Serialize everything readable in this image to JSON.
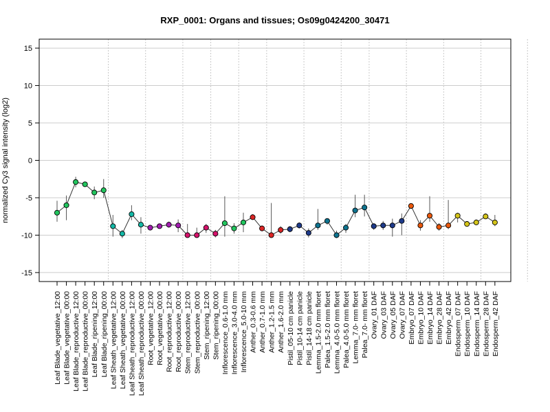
{
  "chart_data": {
    "type": "line",
    "title": "RXP_0001: Organs and tissues; Os09g0424200_30471",
    "ylabel": "normalized Cy3 signal intensity (log2)",
    "xlabel": "",
    "ylim": [
      -16.2,
      16.2
    ],
    "yticks": [
      -15,
      -10,
      -5,
      0,
      5,
      10,
      15
    ],
    "grid": "horizontal solid at y ticks; vertical dotted between tissue groups",
    "group_boundaries_after_index": [
      5,
      9,
      13,
      16,
      19,
      22,
      26,
      30,
      33,
      37,
      41,
      45,
      50,
      54
    ],
    "categories": [
      "Leaf Blade_vegetative_12:00",
      "Leaf Blade_vegetative_00:00",
      "Leaf Blade_reproductive_12:00",
      "Leaf Blade_reproductive_00:00",
      "Leaf Blade_ripening_12:00",
      "Leaf Blade_ripening_00:00",
      "Leaf Sheath_vegetative_12:00",
      "Leaf Sheath_vegetative_00:00",
      "Leaf Sheath_reproductive_12:00",
      "Leaf Sheath_reproductive_00:00",
      "Root_vegetative_12:00",
      "Root_vegetative_00:00",
      "Root_reproductive_12:00",
      "Root_reproductive_00:00",
      "Stem_reproductive_12:00",
      "Stem_reproductive_00:00",
      "Stem_ripening_12:00",
      "Stem_ripening_00:00",
      "Inflorescence_0.6-1.0 mm",
      "Inflorescence_3.0-4.0 mm",
      "Inflorescence_5.0-10 mm",
      "Anther_0.3-0.6 mm",
      "Anther_0.7-1.0 mm",
      "Anther_1.2-1.5 mm",
      "Anther_1.6-2.0 mm",
      "Pistil_05-10 cm panicle",
      "Pistil_10-14 cm panicle",
      "Pistil_14-18 cm panicle",
      "Lemma_1.5-2.0 mm floret",
      "Palea_1.5-2.0 mm floret",
      "Lemma_4.0-5.0 mm floret",
      "Palea_4.0-5.0 mm floret",
      "Lemma_7.0- mm floret",
      "Palea_7.0- mm floret",
      "Ovary_01 DAF",
      "Ovary_03 DAF",
      "Ovary_05 DAF",
      "Ovary_07 DAF",
      "Embryo_07 DAF",
      "Embryo_10 DAF",
      "Embryo_14 DAF",
      "Embryo_28 DAF",
      "Embryo_42 DAF",
      "Endosperm_07 DAF",
      "Endosperm_10 DAF",
      "Endosperm_14 DAF",
      "Endosperm_28 DAF",
      "Endosperm_42 DAF"
    ],
    "values": [
      -7.0,
      -6.0,
      -2.9,
      -3.2,
      -4.3,
      -4.0,
      -8.8,
      -9.8,
      -7.2,
      -8.6,
      -9.0,
      -8.8,
      -8.6,
      -8.7,
      -10.0,
      -10.0,
      -9.0,
      -9.8,
      -8.4,
      -9.1,
      -8.3,
      -7.6,
      -9.1,
      -10.0,
      -9.3,
      -9.2,
      -8.7,
      -9.7,
      -8.7,
      -8.1,
      -10.0,
      -9.0,
      -6.7,
      -6.3,
      -8.8,
      -8.7,
      -8.7,
      -8.1,
      -6.1,
      -8.7,
      -7.4,
      -8.9,
      -8.7,
      -7.4,
      -8.5,
      -8.3,
      -7.5,
      -8.3
    ],
    "err_low": [
      -8.2,
      -8.0,
      -3.6,
      -3.5,
      -5.2,
      -5.0,
      -10.2,
      -10.4,
      -8.0,
      -9.8,
      -9.3,
      -9.1,
      -9.0,
      -9.6,
      -10.3,
      -10.3,
      -9.7,
      -10.3,
      -10.2,
      -9.8,
      -9.6,
      -7.9,
      -9.4,
      -10.3,
      -9.8,
      -9.6,
      -9.1,
      -10.3,
      -9.3,
      -8.6,
      -10.4,
      -9.7,
      -7.6,
      -7.5,
      -9.3,
      -9.3,
      -10.2,
      -10.0,
      -6.4,
      -9.4,
      -8.2,
      -9.4,
      -9.2,
      -8.3,
      -8.7,
      -8.5,
      -7.8,
      -8.8
    ],
    "err_high": [
      -5.4,
      -4.7,
      -2.2,
      -2.9,
      -3.5,
      -2.5,
      -7.3,
      -9.3,
      -6.0,
      -7.6,
      -8.7,
      -8.5,
      -8.2,
      -7.9,
      -8.5,
      -9.0,
      -8.5,
      -9.3,
      -4.8,
      -8.4,
      -7.0,
      -7.2,
      -8.7,
      -5.7,
      -8.8,
      -8.8,
      -8.3,
      -9.1,
      -6.5,
      -7.8,
      -9.4,
      -8.5,
      -4.6,
      -4.6,
      -8.4,
      -8.1,
      -7.8,
      -7.1,
      -5.8,
      -8.0,
      -4.8,
      -8.4,
      -5.3,
      -7.0,
      -8.3,
      -7.9,
      -7.1,
      -7.3
    ],
    "colors": [
      "#22c55e",
      "#22c55e",
      "#22c55e",
      "#22c55e",
      "#22c55e",
      "#22c55e",
      "#14b8a6",
      "#14b8a6",
      "#14b8a6",
      "#14b8a6",
      "#a21caf",
      "#a21caf",
      "#a21caf",
      "#a21caf",
      "#d6126b",
      "#d6126b",
      "#d6126b",
      "#d6126b",
      "#22c55e",
      "#22c55e",
      "#22c55e",
      "#dc2626",
      "#dc2626",
      "#dc2626",
      "#dc2626",
      "#1e3a8a",
      "#1e3a8a",
      "#1e3a8a",
      "#0e7490",
      "#0e7490",
      "#0e7490",
      "#0e7490",
      "#0e7490",
      "#0e7490",
      "#1e3a8a",
      "#1e3a8a",
      "#1e3a8a",
      "#1e3a8a",
      "#ea580c",
      "#ea580c",
      "#ea580c",
      "#ea580c",
      "#ea580c",
      "#d4c41a",
      "#d4c41a",
      "#d4c41a",
      "#d4c41a",
      "#d4c41a"
    ]
  }
}
